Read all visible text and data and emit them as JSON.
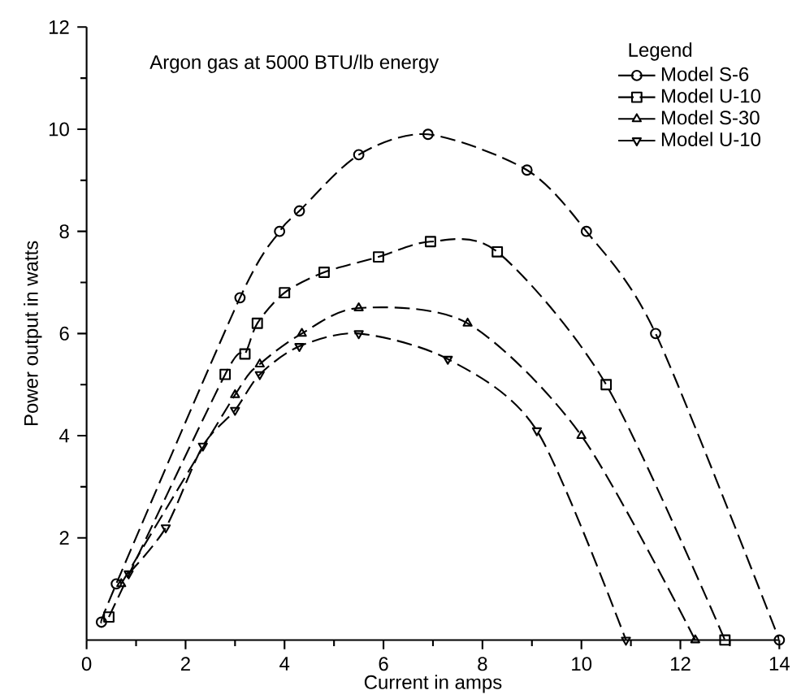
{
  "chart_data": {
    "type": "line",
    "title": "Argon gas at 5000 BTU/lb energy",
    "xlabel": "Current in amps",
    "ylabel": "Power output in watts",
    "legend_title": "Legend",
    "xlim": [
      0,
      14
    ],
    "ylim": [
      0,
      12
    ],
    "xticks": [
      0,
      2,
      4,
      6,
      8,
      10,
      12,
      14
    ],
    "yticks": [
      2,
      4,
      6,
      8,
      10,
      12
    ],
    "legend": "top right",
    "grid": false,
    "series": [
      {
        "name": "Model S-6",
        "color": "#000000",
        "marker": "circle",
        "line_style": "dashed",
        "x": [
          0.3,
          0.6,
          3.1,
          3.9,
          4.3,
          5.5,
          6.9,
          8.9,
          10.1,
          11.5,
          14.0
        ],
        "values": [
          0.35,
          1.1,
          6.7,
          8.0,
          8.4,
          9.5,
          9.9,
          9.2,
          8.0,
          6.0,
          0.0
        ]
      },
      {
        "name": "Model U-10",
        "color": "#000000",
        "marker": "square",
        "line_style": "dashed",
        "x": [
          0.45,
          2.8,
          3.2,
          3.45,
          4.0,
          4.8,
          5.9,
          6.95,
          8.3,
          10.5,
          12.9
        ],
        "values": [
          0.45,
          5.2,
          5.6,
          6.2,
          6.8,
          7.2,
          7.5,
          7.8,
          7.6,
          5.0,
          0.0
        ]
      },
      {
        "name": "Model S-30",
        "color": "#000000",
        "marker": "triangle",
        "line_style": "dashed",
        "x": [
          0.7,
          3.0,
          3.5,
          4.35,
          5.5,
          7.7,
          10.0,
          12.3
        ],
        "values": [
          1.1,
          4.8,
          5.4,
          6.0,
          6.5,
          6.2,
          4.0,
          0.0
        ]
      },
      {
        "name": "Model U-10",
        "color": "#000000",
        "marker": "triangle-down",
        "line_style": "dashed",
        "x": [
          0.85,
          1.6,
          2.35,
          3.0,
          3.5,
          4.3,
          5.5,
          7.3,
          9.1,
          10.9
        ],
        "values": [
          1.3,
          2.2,
          3.8,
          4.5,
          5.2,
          5.75,
          6.0,
          5.5,
          4.1,
          0.0
        ]
      }
    ]
  }
}
